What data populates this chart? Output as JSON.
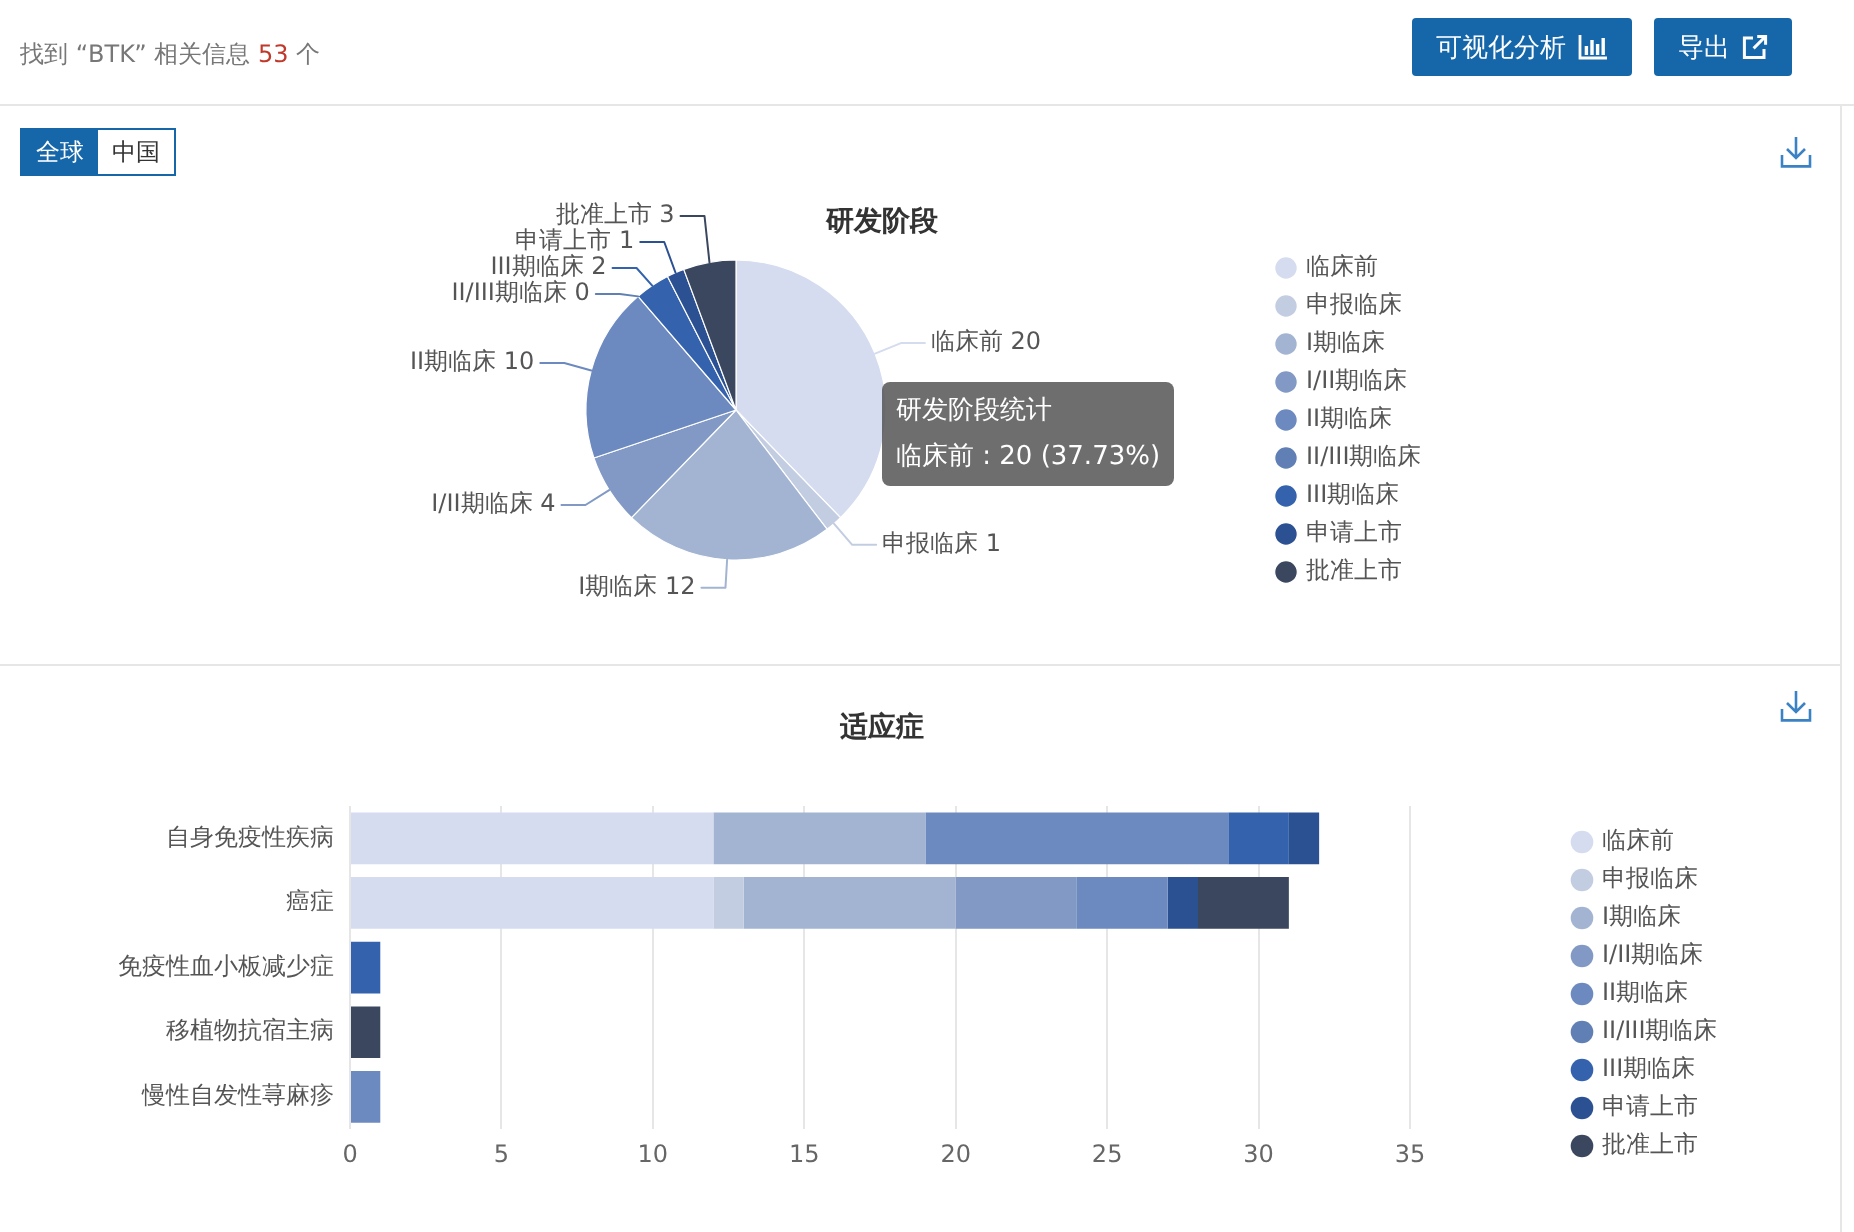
{
  "chart_data": [
    {
      "type": "other",
      "annotations": [
        "找到 “BTK” 相关信息 53 个",
        "可视化分析",
        "导出"
      ]
    },
    {
      "type": "pie",
      "title": "研发阶段",
      "categories": [
        "临床前",
        "申报临床",
        "I期临床",
        "I/II期临床",
        "II期临床",
        "II/III期临床",
        "III期临床",
        "申请上市",
        "批准上市"
      ],
      "values": [
        20,
        1,
        12,
        4,
        10,
        0,
        2,
        1,
        3
      ],
      "value_labels": [
        "20",
        "1",
        "12",
        "4",
        "10",
        "0",
        "2",
        "1",
        "3"
      ],
      "colors": [
        "#d5dcef",
        "#c3cde2",
        "#a3b4d3",
        "#8199c4",
        "#6c8abf",
        "#5f7fb5",
        "#3462ad",
        "#2c5192",
        "#3b475f"
      ],
      "legend": "right",
      "annotations": [
        "全球",
        "中国",
        "研发阶段统计",
        "临床前 : 20 (37.73%)"
      ]
    },
    {
      "type": "bar",
      "title": "适应症",
      "orientation": "horizontal",
      "stacked": true,
      "categories": [
        "自身免疫性疾病",
        "癌症",
        "免疫性血小板减少症",
        "移植物抗宿主病",
        "慢性自发性荨麻疹"
      ],
      "series": [
        {
          "name": "临床前",
          "color": "#d5dcef",
          "values": [
            12,
            12,
            null,
            null,
            null
          ]
        },
        {
          "name": "申报临床",
          "color": "#c3cde2",
          "values": [
            null,
            1,
            null,
            null,
            null
          ]
        },
        {
          "name": "I期临床",
          "color": "#a3b4d3",
          "values": [
            7,
            7,
            null,
            null,
            null
          ]
        },
        {
          "name": "I/II期临床",
          "color": "#8199c4",
          "values": [
            null,
            4,
            null,
            null,
            null
          ]
        },
        {
          "name": "II期临床",
          "color": "#6c8abf",
          "values": [
            10,
            3,
            null,
            null,
            1
          ]
        },
        {
          "name": "II/III期临床",
          "color": "#5f7fb5",
          "values": [
            null,
            null,
            null,
            null,
            null
          ]
        },
        {
          "name": "III期临床",
          "color": "#3462ad",
          "values": [
            2,
            null,
            1,
            null,
            null
          ]
        },
        {
          "name": "申请上市",
          "color": "#2c5192",
          "values": [
            1,
            1,
            null,
            null,
            null
          ]
        },
        {
          "name": "批准上市",
          "color": "#3b475f",
          "values": [
            null,
            3,
            null,
            1,
            null
          ]
        }
      ],
      "xlim": [
        0,
        35
      ],
      "xticks": [
        0,
        5,
        10,
        15,
        20,
        25,
        30,
        35
      ],
      "grid": "x",
      "legend": "right"
    }
  ]
}
